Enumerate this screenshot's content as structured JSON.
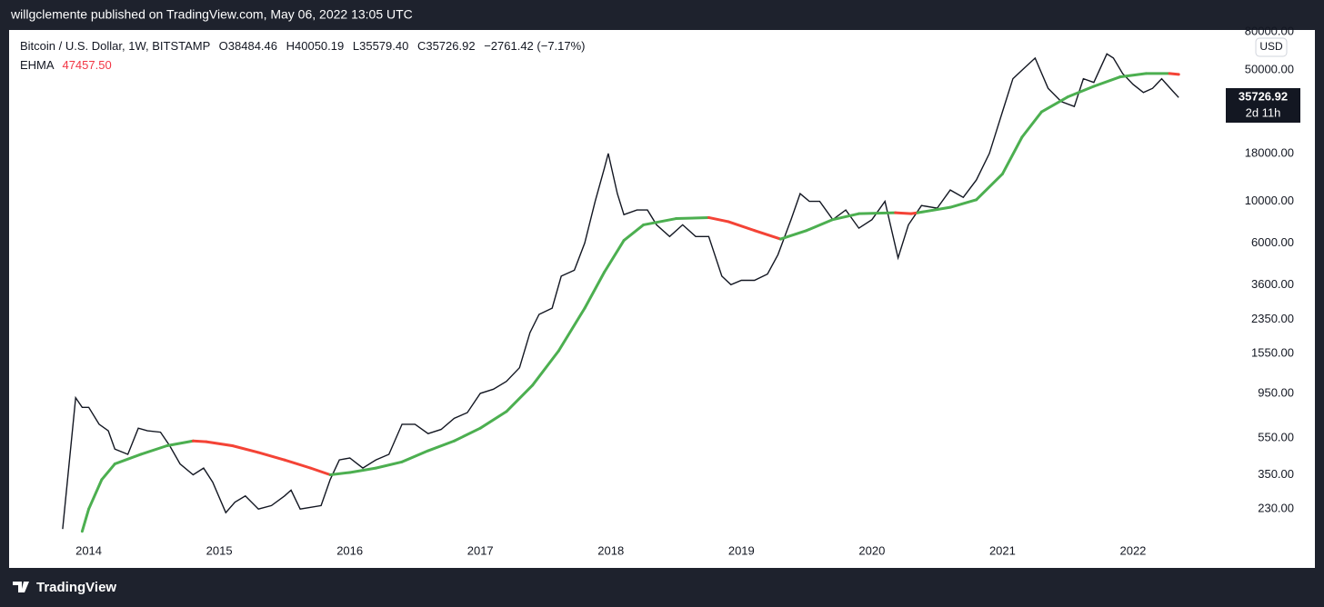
{
  "header": {
    "publisher": "willgclemente published on TradingView.com, May 06, 2022 13:05 UTC"
  },
  "footer": {
    "brand": "TradingView"
  },
  "chart_data": {
    "type": "line",
    "title": "Bitcoin / U.S. Dollar, 1W, BITSTAMP",
    "ohlc": {
      "open": "O38484.46",
      "high": "H40050.19",
      "low": "L35579.40",
      "close": "C35726.92",
      "change": "−2761.42 (−7.17%)"
    },
    "indicator": {
      "name": "EHMA",
      "value": "47457.50"
    },
    "last_price": {
      "value": "35726.92",
      "countdown": "2d 11h"
    },
    "currency": "USD",
    "log_scale": true,
    "grid": false,
    "xlim": [
      2013.39,
      2022.69
    ],
    "xticks": [
      2014,
      2015,
      2016,
      2017,
      2018,
      2019,
      2020,
      2021,
      2022
    ],
    "ylim": [
      165,
      81800
    ],
    "yticks": [
      {
        "value": 80000,
        "label": "80000.00"
      },
      {
        "value": 50000,
        "label": "50000.00"
      },
      {
        "value": 18000,
        "label": "18000.00"
      },
      {
        "value": 10000,
        "label": "10000.00"
      },
      {
        "value": 6000,
        "label": "6000.00"
      },
      {
        "value": 3600,
        "label": "3600.00"
      },
      {
        "value": 2350,
        "label": "2350.00"
      },
      {
        "value": 1550,
        "label": "1550.00"
      },
      {
        "value": 950,
        "label": "950.00"
      },
      {
        "value": 550,
        "label": "550.00"
      },
      {
        "value": 350,
        "label": "350.00"
      },
      {
        "value": 230,
        "label": "230.00"
      }
    ],
    "price": {
      "color": "#131722",
      "x": [
        2013.8,
        2013.85,
        2013.9,
        2013.95,
        2014.0,
        2014.08,
        2014.15,
        2014.2,
        2014.3,
        2014.38,
        2014.45,
        2014.55,
        2014.62,
        2014.7,
        2014.8,
        2014.88,
        2014.95,
        2015.05,
        2015.12,
        2015.2,
        2015.3,
        2015.4,
        2015.5,
        2015.55,
        2015.62,
        2015.7,
        2015.78,
        2015.85,
        2015.92,
        2016.0,
        2016.1,
        2016.2,
        2016.3,
        2016.4,
        2016.5,
        2016.6,
        2016.7,
        2016.8,
        2016.9,
        2017.0,
        2017.1,
        2017.2,
        2017.3,
        2017.38,
        2017.45,
        2017.55,
        2017.62,
        2017.72,
        2017.8,
        2017.88,
        2017.95,
        2017.98,
        2018.05,
        2018.1,
        2018.2,
        2018.28,
        2018.35,
        2018.45,
        2018.55,
        2018.65,
        2018.75,
        2018.85,
        2018.92,
        2019.0,
        2019.1,
        2019.2,
        2019.28,
        2019.38,
        2019.45,
        2019.52,
        2019.6,
        2019.7,
        2019.8,
        2019.9,
        2020.0,
        2020.1,
        2020.2,
        2020.28,
        2020.38,
        2020.5,
        2020.6,
        2020.7,
        2020.8,
        2020.9,
        2021.0,
        2021.08,
        2021.15,
        2021.25,
        2021.35,
        2021.45,
        2021.55,
        2021.62,
        2021.7,
        2021.8,
        2021.85,
        2021.92,
        2022.0,
        2022.08,
        2022.15,
        2022.22,
        2022.3,
        2022.35
      ],
      "values": [
        180,
        400,
        900,
        800,
        800,
        650,
        600,
        480,
        450,
        620,
        600,
        590,
        500,
        400,
        350,
        380,
        320,
        220,
        250,
        270,
        230,
        240,
        270,
        290,
        230,
        235,
        240,
        330,
        420,
        430,
        380,
        420,
        450,
        650,
        650,
        580,
        610,
        700,
        750,
        950,
        1000,
        1100,
        1300,
        2000,
        2500,
        2700,
        4000,
        4300,
        6000,
        10000,
        15000,
        18000,
        11000,
        8500,
        9000,
        9000,
        7500,
        6500,
        7500,
        6500,
        6500,
        4000,
        3600,
        3800,
        3800,
        4100,
        5200,
        8000,
        11000,
        10000,
        10000,
        8000,
        9000,
        7200,
        8000,
        10000,
        5000,
        7500,
        9500,
        9200,
        11500,
        10500,
        13000,
        18000,
        30000,
        45000,
        50000,
        58000,
        40000,
        34000,
        32000,
        45000,
        43000,
        61000,
        58000,
        48000,
        42000,
        38000,
        40000,
        45000,
        39000,
        35726.92
      ]
    },
    "ehma": {
      "x": [
        2013.95,
        2014.0,
        2014.1,
        2014.2,
        2014.4,
        2014.6,
        2014.8,
        2014.9,
        2015.1,
        2015.3,
        2015.5,
        2015.7,
        2015.85,
        2016.0,
        2016.2,
        2016.4,
        2016.6,
        2016.8,
        2017.0,
        2017.2,
        2017.4,
        2017.6,
        2017.8,
        2017.95,
        2018.1,
        2018.25,
        2018.5,
        2018.75,
        2018.9,
        2019.1,
        2019.3,
        2019.5,
        2019.7,
        2019.9,
        2020.18,
        2020.3,
        2020.35,
        2020.6,
        2020.8,
        2021.0,
        2021.15,
        2021.3,
        2021.5,
        2021.7,
        2021.9,
        2022.1,
        2022.28,
        2022.35
      ],
      "values": [
        175,
        230,
        330,
        400,
        450,
        500,
        530,
        525,
        500,
        460,
        420,
        380,
        350,
        360,
        380,
        410,
        470,
        530,
        620,
        760,
        1050,
        1600,
        2700,
        4200,
        6200,
        7500,
        8100,
        8200,
        7800,
        7000,
        6300,
        7000,
        8000,
        8600,
        8700,
        8600,
        8700,
        9300,
        10200,
        14000,
        22000,
        30000,
        36000,
        41000,
        46000,
        48000,
        48000,
        47457.5
      ],
      "colors": [
        "#4caf50",
        "#4caf50",
        "#4caf50",
        "#4caf50",
        "#4caf50",
        "#4caf50",
        "#4caf50",
        "#f44336",
        "#f44336",
        "#f44336",
        "#f44336",
        "#f44336",
        "#f44336",
        "#4caf50",
        "#4caf50",
        "#4caf50",
        "#4caf50",
        "#4caf50",
        "#4caf50",
        "#4caf50",
        "#4caf50",
        "#4caf50",
        "#4caf50",
        "#4caf50",
        "#4caf50",
        "#4caf50",
        "#4caf50",
        "#4caf50",
        "#f44336",
        "#f44336",
        "#f44336",
        "#4caf50",
        "#4caf50",
        "#4caf50",
        "#4caf50",
        "#f44336",
        "#f44336",
        "#4caf50",
        "#4caf50",
        "#4caf50",
        "#4caf50",
        "#4caf50",
        "#4caf50",
        "#4caf50",
        "#4caf50",
        "#4caf50",
        "#4caf50",
        "#f44336"
      ]
    }
  }
}
